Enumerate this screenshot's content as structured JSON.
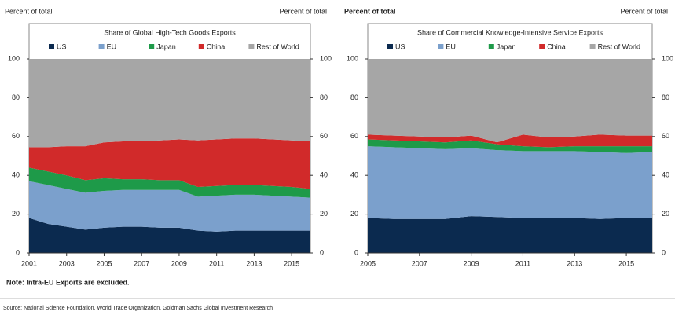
{
  "chart_data": [
    {
      "type": "stacked_area",
      "title": "Share of Global High-Tech Goods Exports",
      "y_label": "Percent of total",
      "y2_label": "Percent of total",
      "x": [
        2001,
        2002,
        2003,
        2004,
        2005,
        2006,
        2007,
        2008,
        2009,
        2010,
        2011,
        2012,
        2013,
        2014,
        2015,
        2016
      ],
      "xlim": [
        2001,
        2016
      ],
      "xticks": [
        2001,
        2003,
        2005,
        2007,
        2009,
        2011,
        2013,
        2015
      ],
      "ylim": [
        0,
        100
      ],
      "yticks": [
        0,
        20,
        40,
        60,
        80,
        100
      ],
      "y2lim": [
        0,
        100
      ],
      "y2ticks": [
        0,
        20,
        40,
        60,
        80,
        100
      ],
      "legend": "top",
      "series": [
        {
          "name": "US",
          "color": "#0b2a4f",
          "values": [
            18,
            15,
            13.5,
            12,
            13,
            13.5,
            13.5,
            13,
            13,
            11.5,
            11,
            11.5,
            11.5,
            11.5,
            11.5,
            11.5
          ]
        },
        {
          "name": "EU",
          "color": "#7ba0cc",
          "values": [
            19,
            20,
            19.5,
            19,
            19,
            19,
            19,
            19.5,
            19.5,
            17.5,
            18.5,
            18.5,
            18.5,
            18,
            17.5,
            17
          ]
        },
        {
          "name": "Japan",
          "color": "#1e9a49",
          "values": [
            7,
            7,
            7,
            6.5,
            6.5,
            5.5,
            5.5,
            5,
            5,
            5,
            5,
            5,
            5,
            5,
            5,
            4.5
          ]
        },
        {
          "name": "China",
          "color": "#d12a2a",
          "values": [
            10.5,
            12.5,
            15,
            17.5,
            18.5,
            19.5,
            19.5,
            20.5,
            21,
            24,
            24,
            24,
            24,
            24,
            24,
            24.5
          ]
        },
        {
          "name": "Rest of World",
          "color": "#a6a6a6",
          "values": [
            45.5,
            45.5,
            45,
            45,
            43,
            42.5,
            42.5,
            42,
            41.5,
            42,
            41.5,
            41,
            41,
            41.5,
            42,
            42.5
          ]
        }
      ]
    },
    {
      "type": "stacked_area",
      "title": "Share of Commercial Knowledge-Intensive Service Exports",
      "y_label": "Percent of total",
      "y2_label": "Percent of total",
      "x": [
        2005,
        2006,
        2007,
        2008,
        2009,
        2010,
        2011,
        2012,
        2013,
        2014,
        2015,
        2016
      ],
      "xlim": [
        2005,
        2016
      ],
      "xticks": [
        2005,
        2007,
        2009,
        2011,
        2013,
        2015
      ],
      "ylim": [
        0,
        100
      ],
      "yticks": [
        0,
        20,
        40,
        60,
        80,
        100
      ],
      "y2lim": [
        0,
        100
      ],
      "y2ticks": [
        0,
        20,
        40,
        60,
        80,
        100
      ],
      "legend": "top",
      "series": [
        {
          "name": "US",
          "color": "#0b2a4f",
          "values": [
            18,
            17.5,
            17.5,
            17.5,
            19,
            18.5,
            18,
            18,
            18,
            17.5,
            18,
            18
          ]
        },
        {
          "name": "EU",
          "color": "#7ba0cc",
          "values": [
            37,
            37,
            36.5,
            36,
            35,
            34.5,
            34.5,
            34.5,
            34.5,
            34.5,
            33.5,
            34
          ]
        },
        {
          "name": "Japan",
          "color": "#1e9a49",
          "values": [
            3.5,
            3.5,
            3.5,
            3.5,
            4,
            3,
            2.5,
            2,
            2.5,
            3,
            3.5,
            3
          ]
        },
        {
          "name": "China",
          "color": "#d12a2a",
          "values": [
            2.5,
            2.5,
            2.5,
            2.5,
            2.5,
            1,
            6,
            5,
            5,
            6,
            5.5,
            5.5
          ]
        },
        {
          "name": "Rest of World",
          "color": "#a6a6a6",
          "values": [
            39,
            39.5,
            40,
            40.5,
            39.5,
            43,
            39,
            40.5,
            40,
            39,
            39.5,
            39.5
          ]
        }
      ]
    }
  ],
  "note": "Note: Intra-EU Exports are excluded.",
  "source": "Source: National Science Foundation, World Trade Organization, Goldman Sachs Global Investment Research"
}
